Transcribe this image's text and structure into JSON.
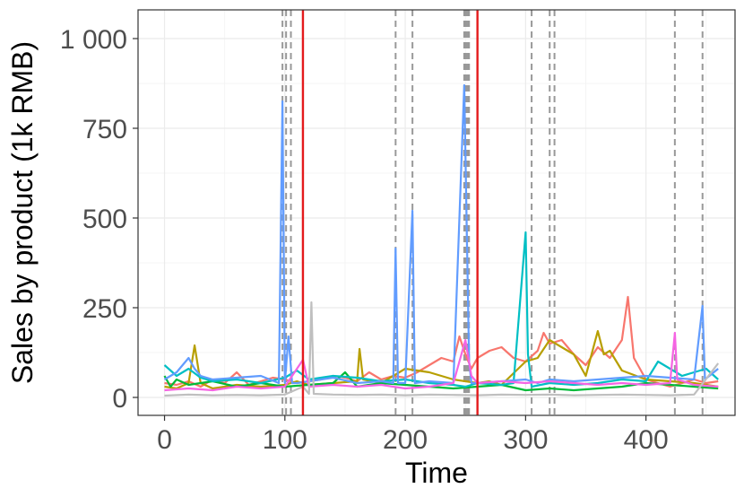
{
  "chart_data": {
    "type": "line",
    "title": "",
    "xlabel": "Time",
    "ylabel": "Sales by product (1k RMB)",
    "xlim": [
      -22,
      474
    ],
    "ylim": [
      -50,
      1080
    ],
    "x_ticks": [
      0,
      100,
      200,
      300,
      400
    ],
    "x_tick_labels": [
      "0",
      "100",
      "200",
      "300",
      "400"
    ],
    "y_ticks": [
      0,
      250,
      500,
      750,
      1000
    ],
    "y_tick_labels": [
      "0",
      "250",
      "500",
      "750",
      "1 000"
    ],
    "grid": true,
    "legend": "none",
    "vlines_dashed": [
      98,
      101,
      105,
      192,
      206,
      249,
      250,
      251,
      252,
      253,
      305,
      320,
      324,
      424,
      447
    ],
    "vlines_solid": [
      115,
      260
    ],
    "vline_dashed_color": "#999999",
    "vline_solid_color": "#e41a1c",
    "series_colors": [
      "#f8766d",
      "#b79f00",
      "#00ba38",
      "#00bfc4",
      "#619cff",
      "#f564e3",
      "#bfbfbf"
    ],
    "series": [
      {
        "color": "#f8766d",
        "points": [
          [
            0,
            40
          ],
          [
            10,
            35
          ],
          [
            20,
            45
          ],
          [
            30,
            30
          ],
          [
            40,
            50
          ],
          [
            50,
            40
          ],
          [
            60,
            70
          ],
          [
            70,
            35
          ],
          [
            80,
            45
          ],
          [
            90,
            55
          ],
          [
            100,
            50
          ],
          [
            110,
            40
          ],
          [
            120,
            45
          ],
          [
            130,
            50
          ],
          [
            140,
            60
          ],
          [
            150,
            55
          ],
          [
            160,
            45
          ],
          [
            170,
            70
          ],
          [
            180,
            50
          ],
          [
            190,
            60
          ],
          [
            200,
            55
          ],
          [
            210,
            70
          ],
          [
            220,
            90
          ],
          [
            230,
            110
          ],
          [
            240,
            100
          ],
          [
            245,
            170
          ],
          [
            250,
            120
          ],
          [
            255,
            80
          ],
          [
            260,
            110
          ],
          [
            270,
            130
          ],
          [
            280,
            140
          ],
          [
            290,
            110
          ],
          [
            300,
            100
          ],
          [
            310,
            130
          ],
          [
            315,
            180
          ],
          [
            320,
            150
          ],
          [
            330,
            160
          ],
          [
            340,
            120
          ],
          [
            350,
            90
          ],
          [
            360,
            140
          ],
          [
            370,
            110
          ],
          [
            380,
            160
          ],
          [
            385,
            280
          ],
          [
            390,
            110
          ],
          [
            400,
            50
          ],
          [
            410,
            40
          ],
          [
            420,
            30
          ],
          [
            430,
            40
          ],
          [
            440,
            50
          ],
          [
            450,
            40
          ],
          [
            460,
            45
          ]
        ]
      },
      {
        "color": "#b79f00",
        "points": [
          [
            0,
            30
          ],
          [
            10,
            25
          ],
          [
            20,
            40
          ],
          [
            25,
            145
          ],
          [
            30,
            40
          ],
          [
            40,
            25
          ],
          [
            60,
            35
          ],
          [
            80,
            30
          ],
          [
            100,
            35
          ],
          [
            110,
            45
          ],
          [
            120,
            35
          ],
          [
            140,
            40
          ],
          [
            160,
            45
          ],
          [
            162,
            135
          ],
          [
            165,
            50
          ],
          [
            180,
            40
          ],
          [
            190,
            60
          ],
          [
            200,
            80
          ],
          [
            220,
            70
          ],
          [
            240,
            50
          ],
          [
            260,
            40
          ],
          [
            270,
            45
          ],
          [
            280,
            35
          ],
          [
            300,
            100
          ],
          [
            310,
            110
          ],
          [
            320,
            160
          ],
          [
            330,
            140
          ],
          [
            340,
            120
          ],
          [
            350,
            60
          ],
          [
            360,
            185
          ],
          [
            365,
            120
          ],
          [
            370,
            130
          ],
          [
            380,
            75
          ],
          [
            400,
            50
          ],
          [
            420,
            45
          ],
          [
            440,
            40
          ],
          [
            460,
            30
          ]
        ]
      },
      {
        "color": "#00ba38",
        "points": [
          [
            0,
            60
          ],
          [
            5,
            30
          ],
          [
            10,
            50
          ],
          [
            20,
            35
          ],
          [
            40,
            45
          ],
          [
            60,
            30
          ],
          [
            80,
            40
          ],
          [
            100,
            30
          ],
          [
            120,
            35
          ],
          [
            140,
            40
          ],
          [
            150,
            70
          ],
          [
            160,
            30
          ],
          [
            180,
            40
          ],
          [
            200,
            35
          ],
          [
            220,
            30
          ],
          [
            240,
            25
          ],
          [
            260,
            30
          ],
          [
            280,
            35
          ],
          [
            300,
            20
          ],
          [
            320,
            25
          ],
          [
            340,
            20
          ],
          [
            360,
            25
          ],
          [
            380,
            30
          ],
          [
            400,
            40
          ],
          [
            420,
            35
          ],
          [
            440,
            30
          ],
          [
            460,
            25
          ]
        ]
      },
      {
        "color": "#00bfc4",
        "points": [
          [
            0,
            90
          ],
          [
            5,
            75
          ],
          [
            10,
            60
          ],
          [
            20,
            80
          ],
          [
            30,
            55
          ],
          [
            40,
            45
          ],
          [
            60,
            50
          ],
          [
            80,
            40
          ],
          [
            100,
            55
          ],
          [
            110,
            75
          ],
          [
            120,
            50
          ],
          [
            140,
            60
          ],
          [
            160,
            55
          ],
          [
            180,
            45
          ],
          [
            200,
            50
          ],
          [
            220,
            40
          ],
          [
            240,
            35
          ],
          [
            250,
            30
          ],
          [
            260,
            40
          ],
          [
            280,
            35
          ],
          [
            290,
            40
          ],
          [
            300,
            460
          ],
          [
            302,
            120
          ],
          [
            305,
            30
          ],
          [
            320,
            40
          ],
          [
            340,
            35
          ],
          [
            360,
            40
          ],
          [
            380,
            50
          ],
          [
            400,
            45
          ],
          [
            410,
            100
          ],
          [
            420,
            80
          ],
          [
            430,
            60
          ],
          [
            440,
            70
          ],
          [
            450,
            80
          ],
          [
            460,
            50
          ]
        ]
      },
      {
        "color": "#619cff",
        "points": [
          [
            0,
            50
          ],
          [
            10,
            70
          ],
          [
            20,
            110
          ],
          [
            25,
            80
          ],
          [
            30,
            60
          ],
          [
            40,
            50
          ],
          [
            60,
            55
          ],
          [
            80,
            60
          ],
          [
            95,
            40
          ],
          [
            98,
            825
          ],
          [
            100,
            40
          ],
          [
            103,
            170
          ],
          [
            106,
            40
          ],
          [
            110,
            40
          ],
          [
            120,
            45
          ],
          [
            140,
            55
          ],
          [
            160,
            40
          ],
          [
            180,
            45
          ],
          [
            190,
            40
          ],
          [
            192,
            415
          ],
          [
            194,
            40
          ],
          [
            200,
            40
          ],
          [
            206,
            520
          ],
          [
            208,
            40
          ],
          [
            220,
            45
          ],
          [
            240,
            40
          ],
          [
            249,
            870
          ],
          [
            253,
            100
          ],
          [
            255,
            40
          ],
          [
            260,
            40
          ],
          [
            280,
            45
          ],
          [
            300,
            50
          ],
          [
            310,
            40
          ],
          [
            320,
            50
          ],
          [
            340,
            45
          ],
          [
            360,
            50
          ],
          [
            380,
            55
          ],
          [
            400,
            60
          ],
          [
            420,
            55
          ],
          [
            440,
            50
          ],
          [
            447,
            255
          ],
          [
            449,
            50
          ],
          [
            460,
            80
          ]
        ]
      },
      {
        "color": "#f564e3",
        "points": [
          [
            0,
            20
          ],
          [
            20,
            25
          ],
          [
            40,
            20
          ],
          [
            60,
            30
          ],
          [
            80,
            25
          ],
          [
            100,
            30
          ],
          [
            115,
            105
          ],
          [
            120,
            30
          ],
          [
            140,
            35
          ],
          [
            160,
            30
          ],
          [
            180,
            35
          ],
          [
            200,
            25
          ],
          [
            220,
            30
          ],
          [
            240,
            40
          ],
          [
            250,
            160
          ],
          [
            255,
            60
          ],
          [
            260,
            40
          ],
          [
            280,
            45
          ],
          [
            300,
            40
          ],
          [
            320,
            45
          ],
          [
            340,
            40
          ],
          [
            360,
            35
          ],
          [
            380,
            40
          ],
          [
            400,
            35
          ],
          [
            420,
            40
          ],
          [
            424,
            180
          ],
          [
            426,
            50
          ],
          [
            440,
            35
          ],
          [
            460,
            30
          ]
        ]
      },
      {
        "color": "#bfbfbf",
        "points": [
          [
            0,
            5
          ],
          [
            20,
            8
          ],
          [
            40,
            6
          ],
          [
            60,
            7
          ],
          [
            80,
            6
          ],
          [
            100,
            8
          ],
          [
            115,
            30
          ],
          [
            120,
            10
          ],
          [
            122,
            265
          ],
          [
            124,
            10
          ],
          [
            140,
            8
          ],
          [
            160,
            7
          ],
          [
            180,
            8
          ],
          [
            200,
            6
          ],
          [
            220,
            8
          ],
          [
            240,
            7
          ],
          [
            260,
            6
          ],
          [
            280,
            8
          ],
          [
            300,
            7
          ],
          [
            320,
            8
          ],
          [
            340,
            6
          ],
          [
            360,
            7
          ],
          [
            380,
            8
          ],
          [
            400,
            7
          ],
          [
            420,
            6
          ],
          [
            440,
            8
          ],
          [
            460,
            95
          ]
        ]
      }
    ]
  }
}
